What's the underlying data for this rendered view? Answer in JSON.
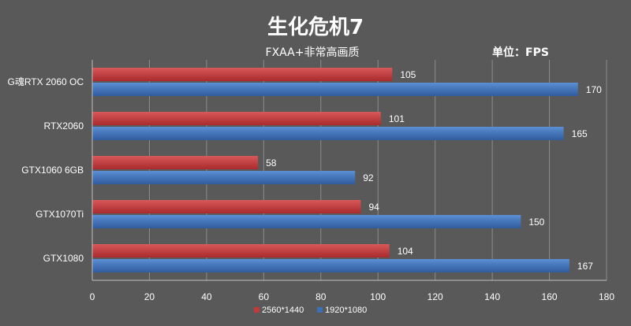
{
  "chart_data": {
    "type": "bar",
    "orientation": "horizontal",
    "title": "生化危机7",
    "subtitle": "FXAA+非常高画质",
    "unit": "单位：FPS",
    "categories": [
      "G魂RTX 2060 OC",
      "RTX2060",
      "GTX1060 6GB",
      "GTX1070Ti",
      "GTX1080"
    ],
    "series": [
      {
        "name": "2560*1440",
        "color": "#c0393b",
        "values": [
          105,
          101,
          58,
          94,
          104
        ]
      },
      {
        "name": "1920*1080",
        "color": "#3d6fb6",
        "values": [
          170,
          165,
          92,
          150,
          167
        ]
      }
    ],
    "xlim": [
      0,
      180
    ],
    "xticks": [
      0,
      20,
      40,
      60,
      80,
      100,
      120,
      140,
      160,
      180
    ],
    "grid": true,
    "legend": "bottom"
  }
}
